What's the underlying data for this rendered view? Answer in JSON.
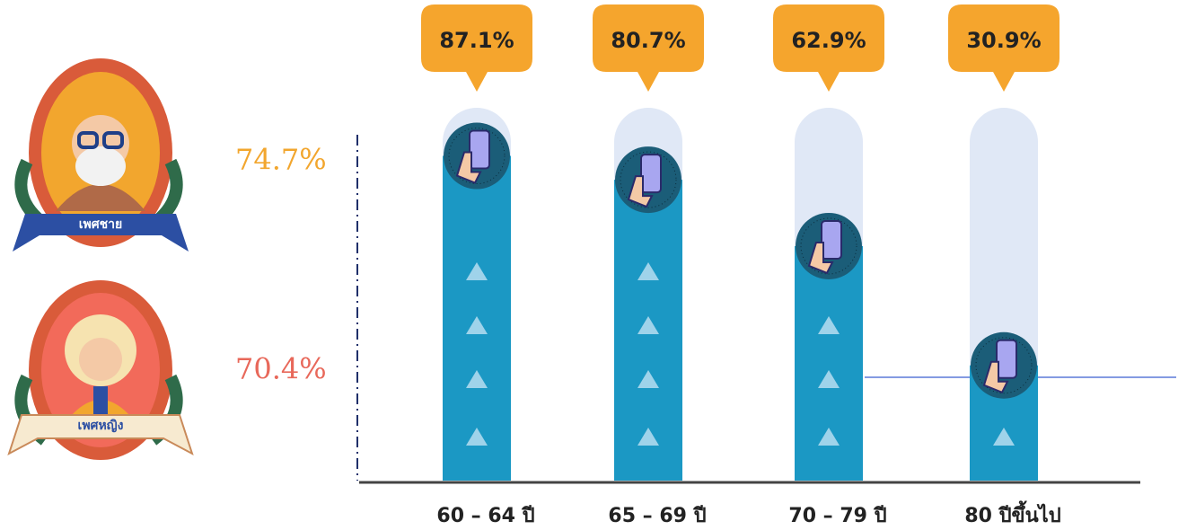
{
  "chart_data": {
    "type": "bar",
    "categories": [
      "60 – 64 ปี",
      "65 – 69 ปี",
      "70 – 79 ปี",
      "80 ปีขึ้นไป"
    ],
    "values": [
      87.1,
      80.7,
      62.9,
      30.9
    ],
    "value_labels": [
      "87.1%",
      "80.7%",
      "62.9%",
      "30.9%"
    ],
    "color": "#1b98c4",
    "ylim": [
      0,
      100
    ]
  },
  "gender": [
    {
      "name": "เพศชาย",
      "value_label": "74.7%"
    },
    {
      "name": "เพศหญิง",
      "value_label": "70.4%"
    }
  ]
}
